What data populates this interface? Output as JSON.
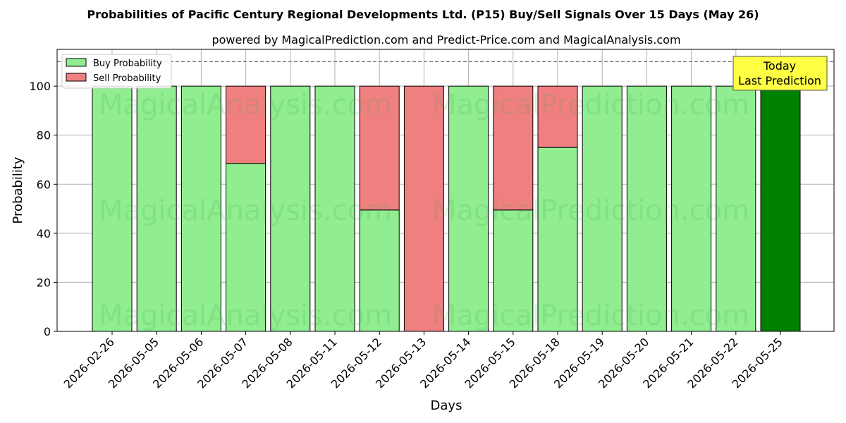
{
  "chart_data": {
    "type": "bar",
    "stacked": true,
    "title": "Probabilities of Pacific Century Regional Developments Ltd. (P15) Buy/Sell Signals Over 15 Days (May 26)",
    "subtitle": "powered by MagicalPrediction.com and Predict-Price.com and MagicalAnalysis.com",
    "xlabel": "Days",
    "ylabel": "Probability",
    "ylim": [
      0,
      115
    ],
    "yticks": [
      0,
      20,
      40,
      60,
      80,
      100
    ],
    "grid": true,
    "legend_position": "top-left",
    "reference_line": 110,
    "categories": [
      "2026-02-26",
      "2026-05-05",
      "2026-05-06",
      "2026-05-07",
      "2026-05-08",
      "2026-05-11",
      "2026-05-12",
      "2026-05-13",
      "2026-05-14",
      "2026-05-15",
      "2026-05-18",
      "2026-05-19",
      "2026-05-20",
      "2026-05-21",
      "2026-05-22",
      "2026-05-25"
    ],
    "series": [
      {
        "name": "Buy Probability",
        "color": "#90ee90",
        "values": [
          100,
          100,
          100,
          68.5,
          100,
          100,
          49.5,
          0,
          100,
          49.5,
          75,
          100,
          100,
          100,
          100,
          100
        ]
      },
      {
        "name": "Sell Probability",
        "color": "#f08080",
        "values": [
          0,
          0,
          0,
          31.5,
          0,
          0,
          50.5,
          100,
          0,
          50.5,
          25,
          0,
          0,
          0,
          0,
          0
        ]
      }
    ],
    "highlight": {
      "index": 15,
      "color": "#008000"
    },
    "annotation": {
      "line1": "Today",
      "line2": "Last Prediction",
      "color": "#ffff44"
    },
    "watermarks": [
      "MagicalAnalysis.com",
      "MagicalPrediction.com"
    ]
  }
}
